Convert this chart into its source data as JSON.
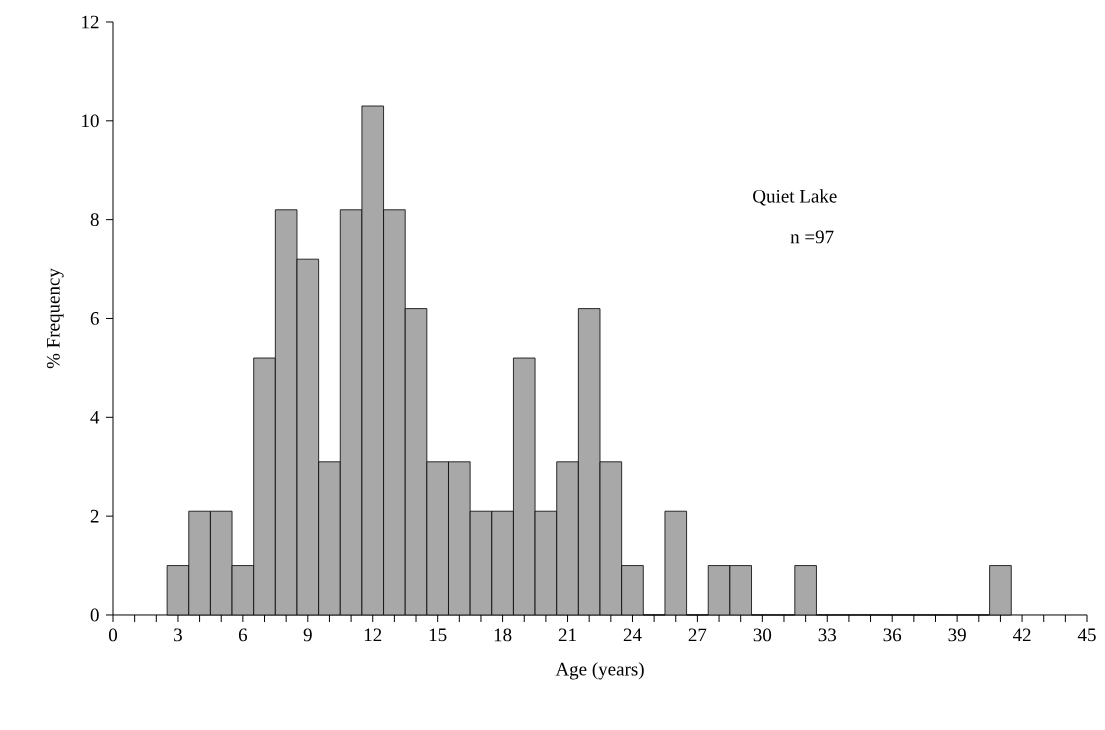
{
  "chart_data": {
    "type": "histogram",
    "xlabel": "Age (years)",
    "ylabel": "% Frequency",
    "annotations": [
      "Quiet Lake",
      "n =97"
    ],
    "bins": [
      2.5,
      3.5,
      4.5,
      5.5,
      6.5,
      7.5,
      8.5,
      9.5,
      10.5,
      11.5,
      12.5,
      13.5,
      14.5,
      15.5,
      16.5,
      17.5,
      18.5,
      19.5,
      20.5,
      21.5,
      22.5,
      23.5,
      24.5,
      25.5,
      26.5,
      27.5,
      28.5,
      29.5,
      30.5,
      31.5,
      32.5,
      33.5,
      34.5,
      35.5,
      36.5,
      37.5,
      38.5,
      39.5,
      40.5,
      41.5
    ],
    "values": [
      1.0,
      2.1,
      2.1,
      1.0,
      5.2,
      8.2,
      7.2,
      3.1,
      8.2,
      10.3,
      8.2,
      6.2,
      3.1,
      3.1,
      2.1,
      2.1,
      5.2,
      2.1,
      3.1,
      6.2,
      3.1,
      1.0,
      0,
      2.1,
      0,
      1.0,
      1.0,
      0,
      0,
      1.0,
      0,
      0,
      0,
      0,
      0,
      0,
      0,
      0,
      1.0
    ],
    "color": "#a8a8a8",
    "xlim": [
      0,
      45
    ],
    "ylim": [
      0,
      12
    ],
    "xticks": [
      0,
      {
        "value": 1,
        "label": null
      },
      {
        "value": 2,
        "label": null
      },
      3,
      {
        "value": 4,
        "label": null
      },
      {
        "value": 5,
        "label": null
      },
      6,
      {
        "value": 7,
        "label": null
      },
      {
        "value": 8,
        "label": null
      },
      9,
      {
        "value": 10,
        "label": null
      },
      {
        "value": 11,
        "label": null
      },
      12,
      {
        "value": 13,
        "label": null
      },
      {
        "value": 14,
        "label": null
      },
      15,
      {
        "value": 16,
        "label": null
      },
      {
        "value": 17,
        "label": null
      },
      18,
      {
        "value": 19,
        "label": null
      },
      {
        "value": 20,
        "label": null
      },
      21,
      {
        "value": 22,
        "label": null
      },
      {
        "value": 23,
        "label": null
      },
      24,
      {
        "value": 25,
        "label": null
      },
      {
        "value": 26,
        "label": null
      },
      27,
      {
        "value": 28,
        "label": null
      },
      {
        "value": 29,
        "label": null
      },
      30,
      {
        "value": 31,
        "label": null
      },
      {
        "value": 32,
        "label": null
      },
      33,
      {
        "value": 34,
        "label": null
      },
      {
        "value": 35,
        "label": null
      },
      36,
      {
        "value": 37,
        "label": null
      },
      {
        "value": 38,
        "label": null
      },
      39,
      {
        "value": 40,
        "label": null
      },
      {
        "value": 41,
        "label": null
      },
      42,
      {
        "value": 43,
        "label": null
      },
      {
        "value": 44,
        "label": null
      },
      45
    ],
    "yticks": [
      0,
      2,
      4,
      6,
      8,
      10,
      12
    ]
  }
}
